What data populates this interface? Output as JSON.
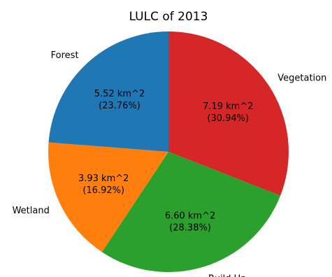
{
  "chart_data": {
    "type": "pie",
    "title": "LULC of 2013",
    "slices": [
      {
        "label": "Vegetation",
        "value": 7.19,
        "percent": 30.94,
        "value_text": "7.19 km^2",
        "percent_text": "(30.94%)",
        "color": "#d62728"
      },
      {
        "label": "Build Up",
        "value": 6.6,
        "percent": 28.38,
        "value_text": "6.60 km^2",
        "percent_text": "(28.38%)",
        "color": "#2ca02c"
      },
      {
        "label": "Wetland",
        "value": 3.93,
        "percent": 16.92,
        "value_text": "3.93 km^2",
        "percent_text": "(16.92%)",
        "color": "#ff7f0e"
      },
      {
        "label": "Forest",
        "value": 5.52,
        "percent": 23.76,
        "value_text": "5.52 km^2",
        "percent_text": "(23.76%)",
        "color": "#1f77b4"
      }
    ],
    "start_angle_deg": 90,
    "direction": "clockwise"
  }
}
